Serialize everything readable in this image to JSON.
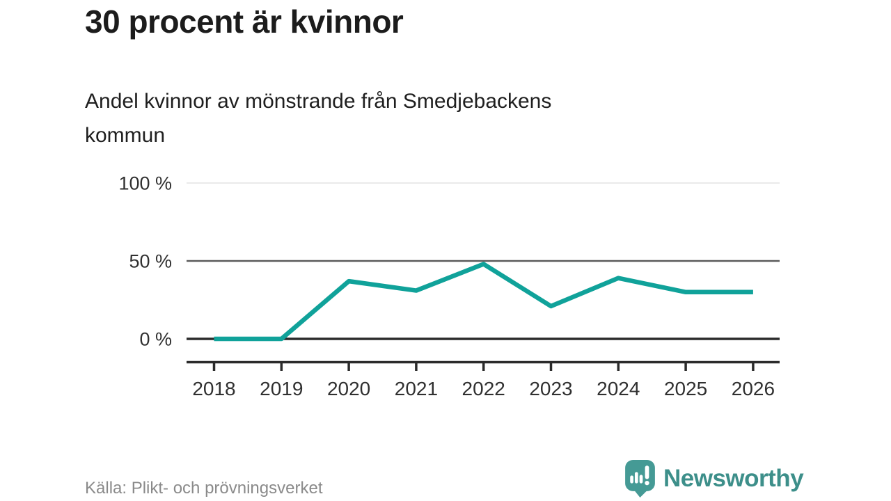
{
  "header": {
    "title": "30 procent är kvinnor",
    "subtitle_lines": [
      "Andel kvinnor av mönstrande från Smedjebackens",
      "kommun"
    ]
  },
  "footer": {
    "source": "Källa: Plikt- och prövningsverket",
    "brand": "Newsworthy"
  },
  "colors": {
    "line": "#10a29a",
    "grid_light": "#e3e3e3",
    "grid_mid": "#5a5a5a",
    "grid_dark": "#2b2b2b",
    "axis_text": "#303030",
    "title_text": "#1c1c1c",
    "source_text": "#8a8a8a",
    "brand_teal": "#3d8f8a",
    "logo_bubble": "#459a95"
  },
  "chart_data": {
    "type": "line",
    "title": "30 procent är kvinnor",
    "subtitle": "Andel kvinnor av mönstrande från Smedjebackens kommun",
    "source": "Källa: Plikt- och prövningsverket",
    "x": [
      2018,
      2019,
      2020,
      2021,
      2022,
      2023,
      2024,
      2025,
      2026
    ],
    "series": [
      {
        "name": "Andel kvinnor av mönstrande",
        "values": [
          0,
          0,
          37,
          31,
          48,
          21,
          39,
          30,
          30
        ],
        "color": "#10a29a"
      }
    ],
    "unit": "%",
    "ylim": [
      0,
      100
    ],
    "yticks": [
      {
        "value": 0,
        "label": "0 %",
        "emphasis": "dark"
      },
      {
        "value": 50,
        "label": "50 %",
        "emphasis": "mid"
      },
      {
        "value": 100,
        "label": "100 %",
        "emphasis": "light"
      }
    ],
    "xlabel": "",
    "ylabel": "",
    "grid": "horizontal",
    "legend": "none"
  }
}
